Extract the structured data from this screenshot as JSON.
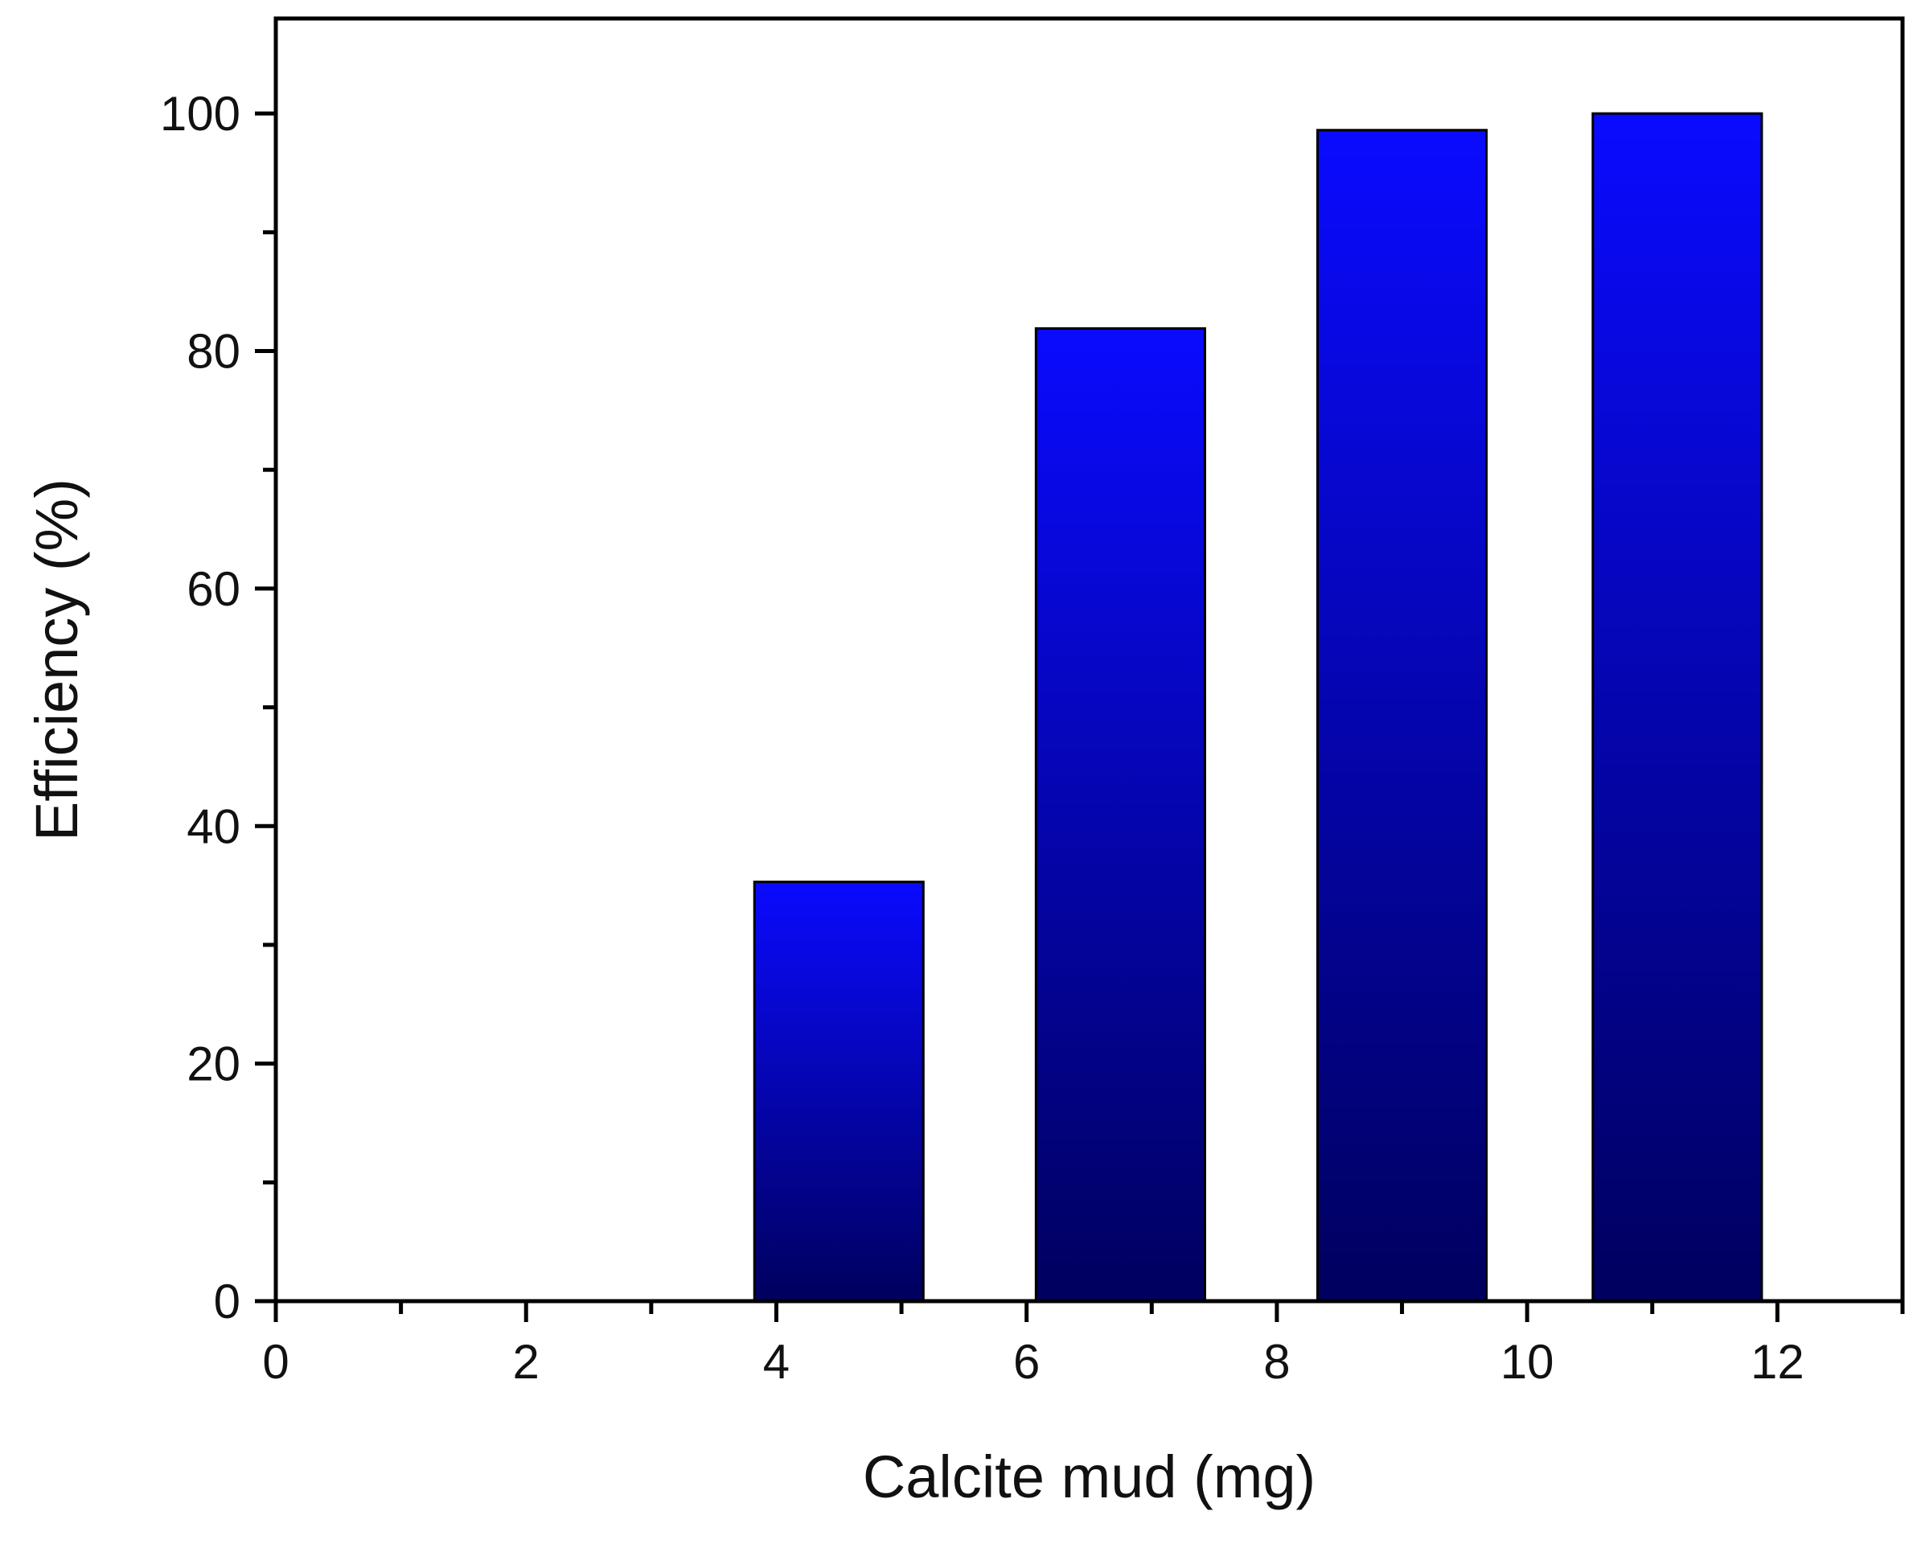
{
  "chart_data": {
    "type": "bar",
    "title": "",
    "xlabel": "Calcite mud (mg)",
    "ylabel": "Efficiency (%)",
    "x": [
      4.5,
      6.75,
      9,
      11.2
    ],
    "values": [
      35.3,
      81.9,
      98.6,
      100
    ],
    "xlim": [
      0,
      13
    ],
    "ylim": [
      0,
      108
    ],
    "xticks": [
      0,
      2,
      4,
      6,
      8,
      10,
      12
    ],
    "yticks": [
      0,
      20,
      40,
      60,
      80,
      100
    ],
    "bar_width": 1.35,
    "grid": false,
    "legend": "none",
    "colors": {
      "bar_top": "#0a0aff",
      "bar_bottom": "#00005e",
      "axis": "#000000"
    }
  }
}
